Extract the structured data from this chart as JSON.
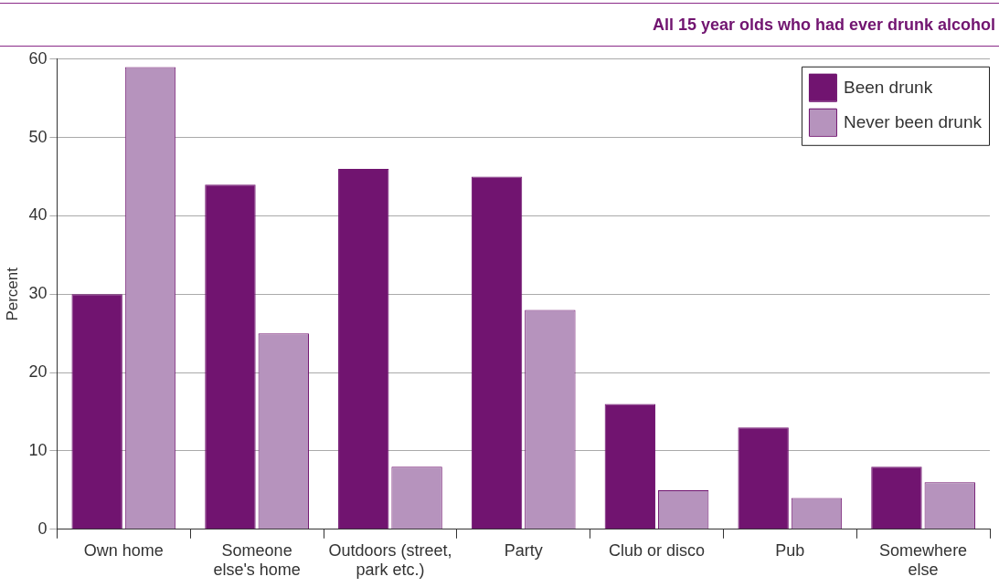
{
  "chart_data": {
    "type": "bar",
    "subtitle": "All 15 year olds who had ever drunk alcohol",
    "ylabel": "Percent",
    "categories": [
      "Own home",
      "Someone else's home",
      "Outdoors (street, park etc.)",
      "Party",
      "Club or disco",
      "Pub",
      "Somewhere else"
    ],
    "series": [
      {
        "name": "Been drunk",
        "color": "#711470",
        "values": [
          30,
          44,
          46,
          45,
          16,
          13,
          8
        ]
      },
      {
        "name": "Never been drunk",
        "color": "#b693bd",
        "values": [
          59,
          25,
          8,
          28,
          5,
          4,
          6
        ]
      }
    ],
    "ylim": [
      0,
      60
    ],
    "yticks": [
      0,
      10,
      20,
      30,
      40,
      50,
      60
    ],
    "grid": "y",
    "legend": "top right"
  }
}
